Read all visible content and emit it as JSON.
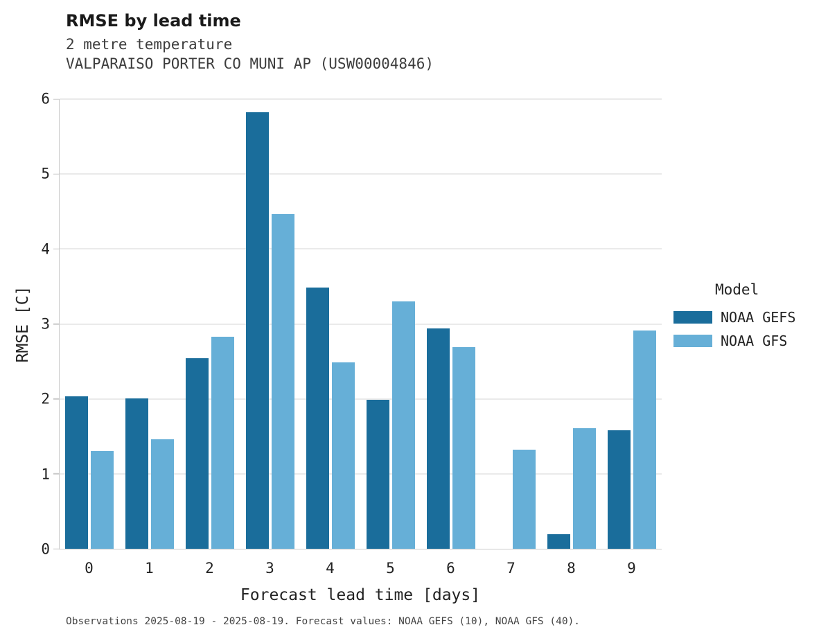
{
  "chart_data": {
    "type": "bar",
    "title": "RMSE by lead time",
    "subtitle_lines": [
      "2 metre temperature",
      "VALPARAISO PORTER CO MUNI AP (USW00004846)"
    ],
    "xlabel": "Forecast lead time [days]",
    "ylabel": "RMSE [C]",
    "categories": [
      "0",
      "1",
      "2",
      "3",
      "4",
      "5",
      "6",
      "7",
      "8",
      "9"
    ],
    "series": [
      {
        "name": "NOAA GEFS",
        "color": "#1a6d9b",
        "values": [
          2.03,
          2.01,
          2.54,
          5.82,
          3.49,
          1.99,
          2.94,
          null,
          0.19,
          1.58
        ]
      },
      {
        "name": "NOAA GFS",
        "color": "#66afd7",
        "values": [
          1.3,
          1.46,
          2.83,
          4.47,
          2.49,
          3.3,
          2.69,
          1.32,
          1.61,
          2.91
        ]
      }
    ],
    "ylim": [
      0,
      6
    ],
    "yticks": [
      0,
      1,
      2,
      3,
      4,
      5,
      6
    ],
    "grid": "horizontal",
    "legend_position": "right"
  },
  "legend": {
    "title": "Model"
  },
  "footer": {
    "text": "Observations 2025-08-19 - 2025-08-19. Forecast values: NOAA GEFS (10), NOAA GFS (40)."
  }
}
